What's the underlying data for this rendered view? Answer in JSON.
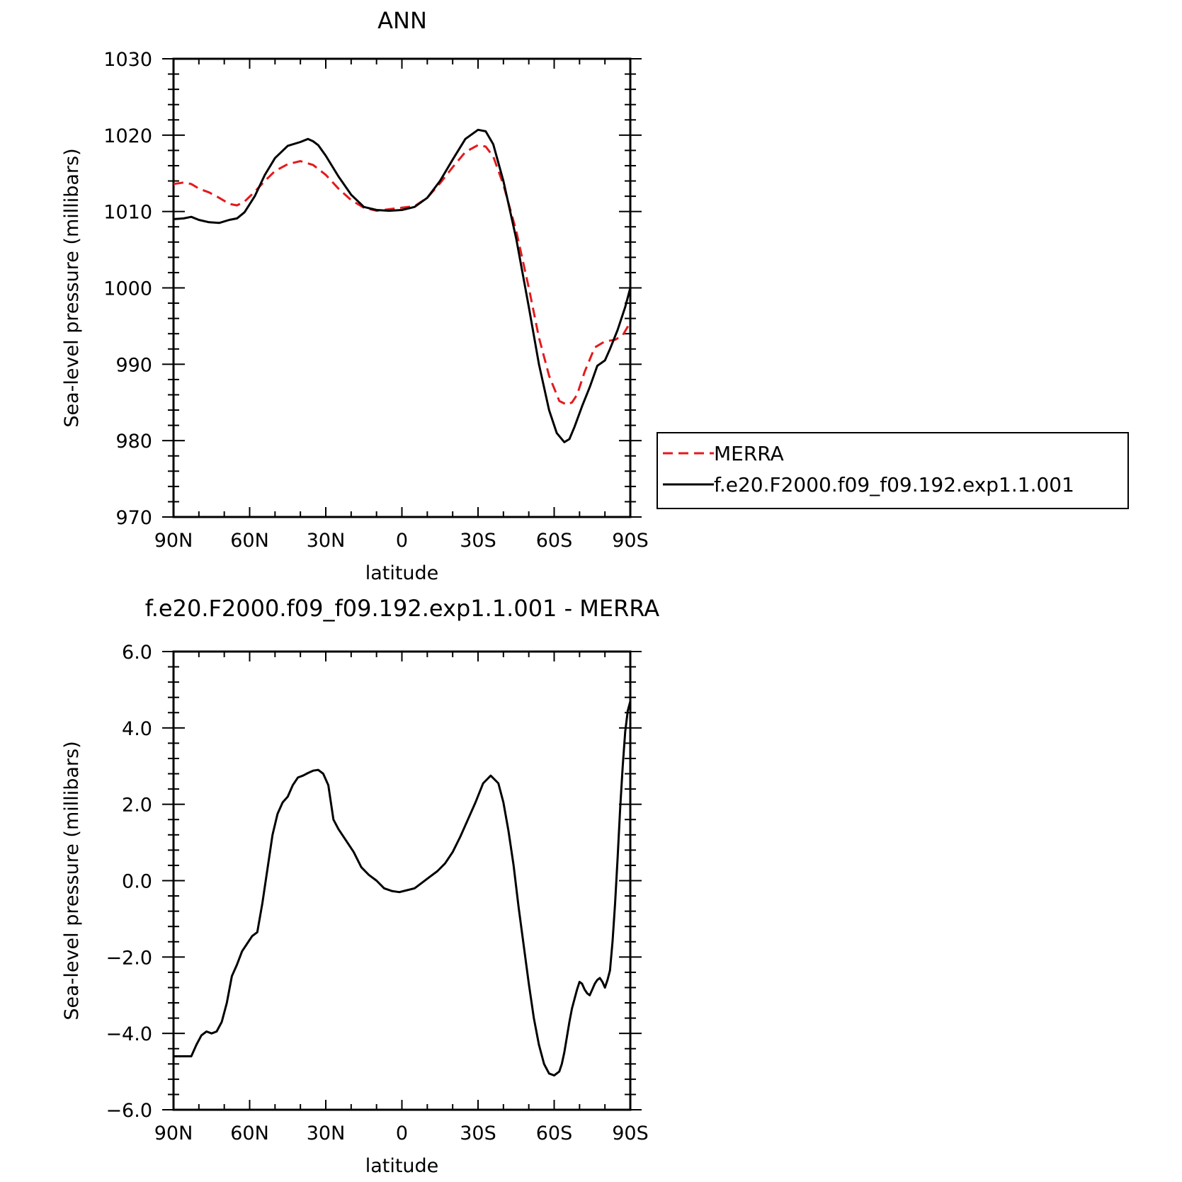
{
  "chart_data": [
    {
      "type": "line",
      "title": "ANN",
      "xlabel": "latitude",
      "ylabel": "Sea-level pressure (millibars)",
      "xlim": [
        90,
        -90
      ],
      "ylim": [
        970,
        1030
      ],
      "xticks": [
        {
          "value": 90,
          "label": "90N"
        },
        {
          "value": 60,
          "label": "60N"
        },
        {
          "value": 30,
          "label": "30N"
        },
        {
          "value": 0,
          "label": "0"
        },
        {
          "value": -30,
          "label": "30S"
        },
        {
          "value": -60,
          "label": "60S"
        },
        {
          "value": -90,
          "label": "90S"
        }
      ],
      "yticks": [
        {
          "value": 970,
          "label": "970"
        },
        {
          "value": 980,
          "label": "980"
        },
        {
          "value": 990,
          "label": "990"
        },
        {
          "value": 1000,
          "label": "1000"
        },
        {
          "value": 1010,
          "label": "1010"
        },
        {
          "value": 1020,
          "label": "1020"
        },
        {
          "value": 1030,
          "label": "1030"
        }
      ],
      "legend_position": "right",
      "series": [
        {
          "name": "MERRA",
          "color": "#e31a1c",
          "dash": "dashed",
          "x": [
            90,
            86,
            83,
            80,
            76,
            72,
            68,
            65,
            62,
            58,
            54,
            50,
            45,
            40,
            35,
            30,
            25,
            20,
            15,
            10,
            5,
            0,
            -5,
            -10,
            -15,
            -20,
            -25,
            -30,
            -33,
            -36,
            -40,
            -45,
            -50,
            -54,
            -58,
            -62,
            -65,
            -67,
            -69,
            -72,
            -76,
            -80,
            -84,
            -87,
            -90
          ],
          "y": [
            1013.6,
            1013.8,
            1013.6,
            1013.0,
            1012.5,
            1011.8,
            1011.0,
            1010.8,
            1011.3,
            1012.6,
            1014.0,
            1015.3,
            1016.2,
            1016.6,
            1016.1,
            1014.8,
            1013.0,
            1011.5,
            1010.5,
            1010.1,
            1010.3,
            1010.5,
            1010.7,
            1011.8,
            1013.7,
            1015.8,
            1017.8,
            1018.7,
            1018.5,
            1017.2,
            1013.5,
            1007.5,
            1000.0,
            993.5,
            988.5,
            985.2,
            984.7,
            985.0,
            986.0,
            989.0,
            992.2,
            993.0,
            993.2,
            993.8,
            995.5
          ]
        },
        {
          "name": "f.e20.F2000.f09_f09.192.exp1.1.001",
          "color": "#000000",
          "dash": "solid",
          "x": [
            90,
            86,
            83,
            80,
            76,
            72,
            68,
            65,
            62,
            58,
            54,
            50,
            45,
            40,
            37,
            35,
            33,
            30,
            25,
            20,
            15,
            10,
            5,
            0,
            -5,
            -10,
            -15,
            -20,
            -25,
            -30,
            -33,
            -36,
            -40,
            -45,
            -50,
            -54,
            -58,
            -61,
            -64,
            -66,
            -68,
            -71,
            -74,
            -77,
            -80,
            -82,
            -85,
            -88,
            -90
          ],
          "y": [
            1009.0,
            1009.1,
            1009.3,
            1008.9,
            1008.6,
            1008.5,
            1008.9,
            1009.1,
            1009.9,
            1012.0,
            1014.8,
            1017.0,
            1018.6,
            1019.1,
            1019.5,
            1019.2,
            1018.7,
            1017.3,
            1014.6,
            1012.2,
            1010.6,
            1010.2,
            1010.1,
            1010.2,
            1010.6,
            1011.8,
            1014.0,
            1016.8,
            1019.5,
            1020.7,
            1020.5,
            1018.8,
            1014.0,
            1006.5,
            997.5,
            990.0,
            984.0,
            981.0,
            979.8,
            980.2,
            981.8,
            984.5,
            987.0,
            989.8,
            990.5,
            992.0,
            994.5,
            997.5,
            1000.0
          ]
        }
      ]
    },
    {
      "type": "line",
      "title": "f.e20.F2000.f09_f09.192.exp1.1.001 - MERRA",
      "xlabel": "latitude",
      "ylabel": "Sea-level pressure (millibars)",
      "xlim": [
        90,
        -90
      ],
      "ylim": [
        -6.0,
        6.0
      ],
      "xticks": [
        {
          "value": 90,
          "label": "90N"
        },
        {
          "value": 60,
          "label": "60N"
        },
        {
          "value": 30,
          "label": "30N"
        },
        {
          "value": 0,
          "label": "0"
        },
        {
          "value": -30,
          "label": "30S"
        },
        {
          "value": -60,
          "label": "60S"
        },
        {
          "value": -90,
          "label": "90S"
        }
      ],
      "yticks": [
        {
          "value": -6,
          "label": "−6.0"
        },
        {
          "value": -4,
          "label": "−4.0"
        },
        {
          "value": -2,
          "label": "−2.0"
        },
        {
          "value": 0,
          "label": "0.0"
        },
        {
          "value": 2,
          "label": "2.0"
        },
        {
          "value": 4,
          "label": "4.0"
        },
        {
          "value": 6,
          "label": "6.0"
        }
      ],
      "series": [
        {
          "color": "#000000",
          "dash": "solid",
          "x": [
            90,
            86,
            83,
            81,
            79,
            77,
            75,
            73,
            71,
            69,
            67,
            65,
            63,
            61,
            59,
            57,
            55,
            53,
            51,
            49,
            47,
            45,
            43,
            41,
            39,
            37,
            35,
            33,
            31,
            29,
            27,
            25,
            22,
            19,
            16,
            13,
            10,
            7,
            4,
            1,
            -2,
            -5,
            -8,
            -11,
            -14,
            -17,
            -20,
            -23,
            -26,
            -29,
            -32,
            -35,
            -38,
            -40,
            -42,
            -44,
            -46,
            -48,
            -50,
            -52,
            -54,
            -56,
            -58,
            -60,
            -62,
            -63,
            -64,
            -65,
            -66,
            -67,
            -68,
            -69,
            -70,
            -71,
            -72,
            -73,
            -74,
            -75,
            -76,
            -77,
            -78,
            -79,
            -80,
            -81,
            -82,
            -83,
            -84,
            -85,
            -86,
            -87,
            -88,
            -89,
            -90
          ],
          "y": [
            -4.6,
            -4.6,
            -4.6,
            -4.3,
            -4.05,
            -3.95,
            -4.0,
            -3.95,
            -3.7,
            -3.2,
            -2.5,
            -2.2,
            -1.85,
            -1.65,
            -1.45,
            -1.35,
            -0.6,
            0.3,
            1.2,
            1.75,
            2.05,
            2.2,
            2.5,
            2.7,
            2.75,
            2.82,
            2.88,
            2.9,
            2.8,
            2.5,
            1.6,
            1.35,
            1.05,
            0.75,
            0.35,
            0.15,
            0.0,
            -0.2,
            -0.27,
            -0.3,
            -0.25,
            -0.2,
            -0.05,
            0.1,
            0.25,
            0.45,
            0.75,
            1.15,
            1.6,
            2.05,
            2.55,
            2.75,
            2.55,
            2.05,
            1.3,
            0.4,
            -0.7,
            -1.7,
            -2.7,
            -3.6,
            -4.3,
            -4.8,
            -5.05,
            -5.1,
            -5.0,
            -4.8,
            -4.5,
            -4.1,
            -3.7,
            -3.35,
            -3.1,
            -2.85,
            -2.65,
            -2.7,
            -2.85,
            -2.95,
            -3.0,
            -2.85,
            -2.7,
            -2.6,
            -2.55,
            -2.65,
            -2.8,
            -2.6,
            -2.35,
            -1.6,
            -0.6,
            0.6,
            1.9,
            3.0,
            3.9,
            4.45,
            4.7
          ]
        }
      ]
    }
  ]
}
